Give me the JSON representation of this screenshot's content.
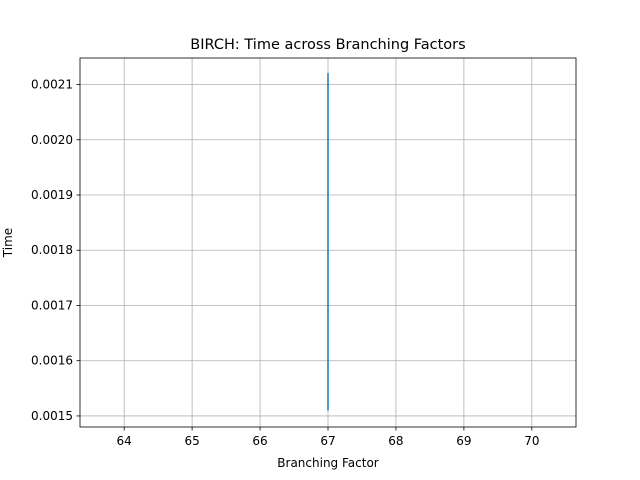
{
  "chart_data": {
    "type": "line",
    "title": "BIRCH: Time across Branching Factors",
    "xlabel": "Branching Factor",
    "ylabel": "Time",
    "xlim": [
      63.35,
      70.65
    ],
    "ylim": [
      0.00148,
      0.002148
    ],
    "xticks": [
      64,
      65,
      66,
      67,
      68,
      69,
      70
    ],
    "xtick_labels": [
      "64",
      "65",
      "66",
      "67",
      "68",
      "69",
      "70"
    ],
    "yticks": [
      0.0015,
      0.0016,
      0.0017,
      0.0018,
      0.0019,
      0.002,
      0.0021
    ],
    "ytick_labels": [
      "0.0015",
      "0.0016",
      "0.0017",
      "0.0018",
      "0.0019",
      "0.0020",
      "0.0021"
    ],
    "grid": true,
    "series": [
      {
        "color": "#1f77b4",
        "x": [
          67,
          67,
          67,
          67,
          67,
          67,
          67,
          67
        ],
        "y": [
          0.00151,
          0.00212,
          0.00168,
          0.00178,
          0.00155,
          0.00205,
          0.00162,
          0.0019
        ]
      }
    ],
    "colors": {
      "grid": "#b0b0b0",
      "axes": "#000000"
    }
  }
}
